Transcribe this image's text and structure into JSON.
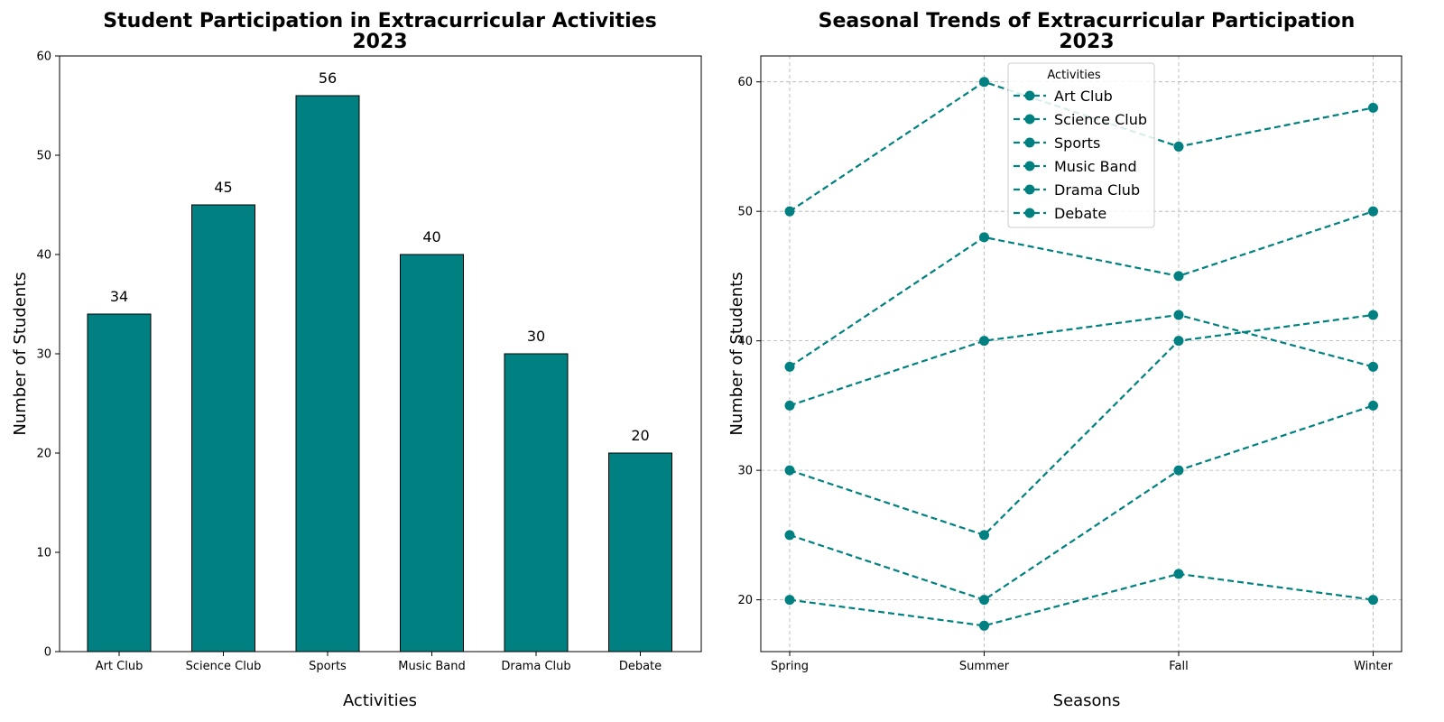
{
  "colors": {
    "accent": "#008080",
    "grid": "#b0b0b0",
    "edge": "#000000"
  },
  "chart_data": [
    {
      "type": "bar",
      "title": "Student Participation in Extracurricular Activities",
      "subtitle": "2023",
      "xlabel": "Activities",
      "ylabel": "Number of Students",
      "categories": [
        "Art Club",
        "Science Club",
        "Sports",
        "Music Band",
        "Drama Club",
        "Debate"
      ],
      "values": [
        34,
        45,
        56,
        40,
        30,
        20
      ],
      "data_labels": [
        "34",
        "45",
        "56",
        "40",
        "30",
        "20"
      ],
      "ylim": [
        0,
        60
      ],
      "yticks": [
        0,
        10,
        20,
        30,
        40,
        50,
        60
      ],
      "grid": false
    },
    {
      "type": "line",
      "title": "Seasonal Trends of Extracurricular Participation",
      "subtitle": "2023",
      "xlabel": "Seasons",
      "ylabel": "Number of Students",
      "categories": [
        "Spring",
        "Summer",
        "Fall",
        "Winter"
      ],
      "series": [
        {
          "name": "Art Club",
          "values": [
            30,
            25,
            40,
            42
          ]
        },
        {
          "name": "Science Club",
          "values": [
            38,
            48,
            45,
            50
          ]
        },
        {
          "name": "Sports",
          "values": [
            50,
            60,
            55,
            58
          ]
        },
        {
          "name": "Music Band",
          "values": [
            35,
            40,
            42,
            38
          ]
        },
        {
          "name": "Drama Club",
          "values": [
            25,
            20,
            30,
            35
          ]
        },
        {
          "name": "Debate",
          "values": [
            20,
            18,
            22,
            20
          ]
        }
      ],
      "ylim": [
        16,
        62
      ],
      "yticks": [
        20,
        30,
        40,
        50,
        60
      ],
      "grid": true,
      "legend_title": "Activities",
      "legend_position": "top-center"
    }
  ]
}
